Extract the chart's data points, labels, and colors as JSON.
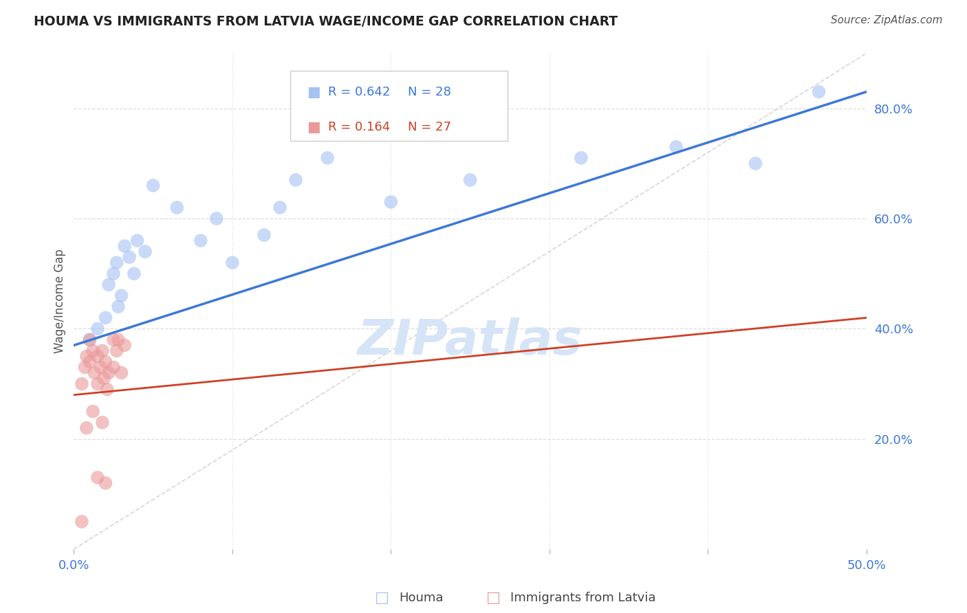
{
  "title": "HOUMA VS IMMIGRANTS FROM LATVIA WAGE/INCOME GAP CORRELATION CHART",
  "source": "Source: ZipAtlas.com",
  "ylabel": "Wage/Income Gap",
  "houma_color": "#a4c2f4",
  "latvia_color": "#ea9999",
  "houma_line_color": "#3c78d8",
  "latvia_line_color": "#cc4125",
  "dashed_line_color": "#cccccc",
  "watermark_color": "#d6e4f7",
  "R_houma": 0.642,
  "N_houma": 28,
  "R_latvia": 0.164,
  "N_latvia": 27,
  "houma_x": [
    1.0,
    1.5,
    2.0,
    2.2,
    2.5,
    2.7,
    3.0,
    3.2,
    3.5,
    3.8,
    4.0,
    4.5,
    5.0,
    6.5,
    8.0,
    9.0,
    10.0,
    12.0,
    13.0,
    14.0,
    16.0,
    20.0,
    25.0,
    32.0,
    38.0,
    43.0,
    47.0,
    2.8
  ],
  "houma_y": [
    38.0,
    40.0,
    42.0,
    48.0,
    50.0,
    52.0,
    46.0,
    55.0,
    53.0,
    50.0,
    56.0,
    54.0,
    66.0,
    62.0,
    56.0,
    60.0,
    52.0,
    57.0,
    62.0,
    67.0,
    71.0,
    63.0,
    67.0,
    71.0,
    73.0,
    70.0,
    83.0,
    44.0
  ],
  "latvia_x": [
    0.5,
    0.7,
    0.8,
    1.0,
    1.0,
    1.2,
    1.3,
    1.5,
    1.5,
    1.7,
    1.8,
    1.9,
    2.0,
    2.1,
    2.2,
    2.5,
    2.5,
    2.7,
    3.0,
    3.2,
    1.2,
    2.8,
    1.8,
    0.8,
    1.5,
    2.0,
    0.5
  ],
  "latvia_y": [
    30.0,
    33.0,
    35.0,
    38.0,
    34.0,
    36.0,
    32.0,
    35.0,
    30.0,
    33.0,
    36.0,
    31.0,
    34.0,
    29.0,
    32.0,
    38.0,
    33.0,
    36.0,
    32.0,
    37.0,
    25.0,
    38.0,
    23.0,
    22.0,
    13.0,
    12.0,
    5.0
  ],
  "xlim": [
    0.0,
    50.0
  ],
  "ylim": [
    0.0,
    90.0
  ],
  "xticks": [
    0,
    10,
    20,
    30,
    40,
    50
  ],
  "yticks": [
    0,
    20,
    40,
    60,
    80
  ],
  "houma_line_x0": 0.0,
  "houma_line_y0": 37.0,
  "houma_line_x1": 50.0,
  "houma_line_y1": 83.0,
  "latvia_line_x0": 0.0,
  "latvia_line_y0": 28.0,
  "latvia_line_x1": 50.0,
  "latvia_line_y1": 42.0,
  "dashed_line_x0": 0.0,
  "dashed_line_y0": 0.0,
  "dashed_line_x1": 50.0,
  "dashed_line_y1": 90.0
}
